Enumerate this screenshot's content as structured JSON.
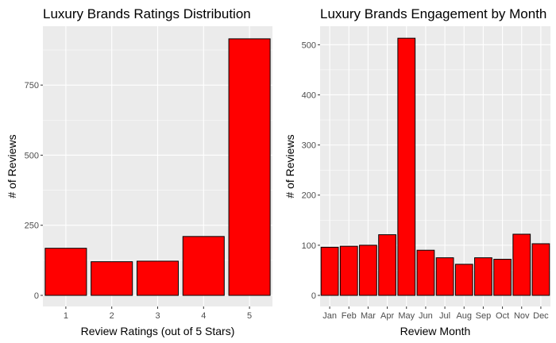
{
  "chart_data": [
    {
      "type": "bar",
      "title": "Luxury Brands Ratings Distribution",
      "xlabel": "Review Ratings (out of 5 Stars)",
      "ylabel": "# of Reviews",
      "categories": [
        "1",
        "2",
        "3",
        "4",
        "5"
      ],
      "values": [
        168,
        120,
        122,
        210,
        915
      ],
      "ylim": [
        0,
        960
      ],
      "y_ticks": [
        0,
        250,
        500,
        750
      ],
      "bar_color": "#ff0000",
      "grid": true
    },
    {
      "type": "bar",
      "title": "Luxury Brands Engagement by Month",
      "xlabel": "Review Month",
      "ylabel": "# of Reviews",
      "categories": [
        "Jan",
        "Feb",
        "Mar",
        "Apr",
        "May",
        "Jun",
        "Jul",
        "Aug",
        "Sep",
        "Oct",
        "Nov",
        "Dec"
      ],
      "values": [
        96,
        98,
        100,
        121,
        513,
        90,
        75,
        62,
        75,
        72,
        122,
        103
      ],
      "ylim": [
        0,
        537
      ],
      "y_ticks": [
        0,
        100,
        200,
        300,
        400,
        500
      ],
      "bar_color": "#ff0000",
      "grid": true
    }
  ]
}
